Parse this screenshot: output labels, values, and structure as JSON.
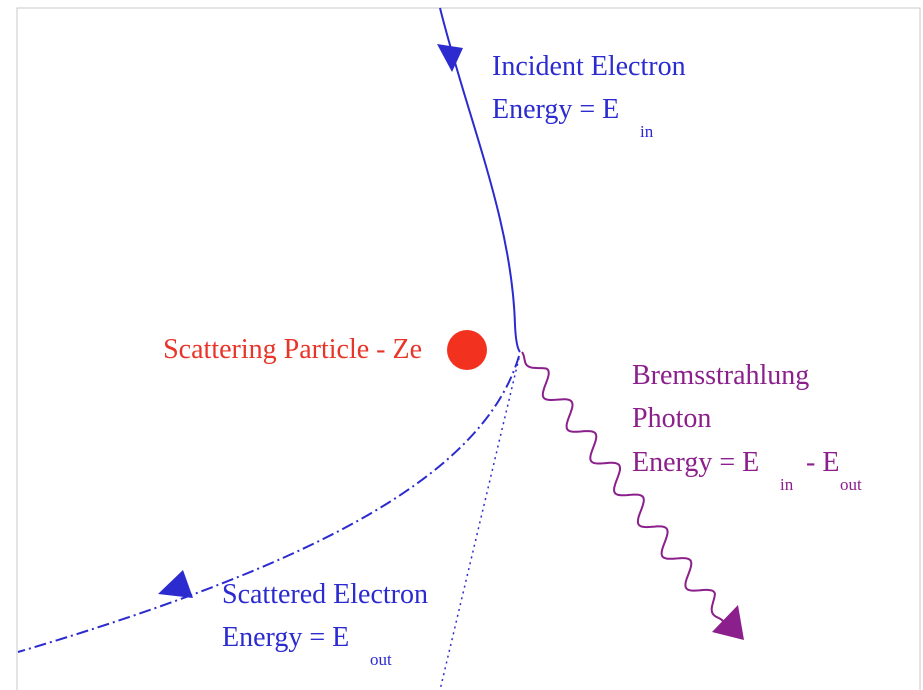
{
  "incident": {
    "title": "Incident Electron",
    "energy": "Energy = E",
    "energy_sub": "in"
  },
  "particle": {
    "label": "Scattering Particle - Ze"
  },
  "photon": {
    "title": "Bremsstrahlung",
    "subtitle": "Photon",
    "energy": "Energy = E",
    "energy_sub": "in",
    "energy_minus": "- E",
    "energy_sub2": "out"
  },
  "scattered": {
    "title": "Scattered Electron",
    "energy": "Energy = E",
    "energy_sub": "out"
  }
}
